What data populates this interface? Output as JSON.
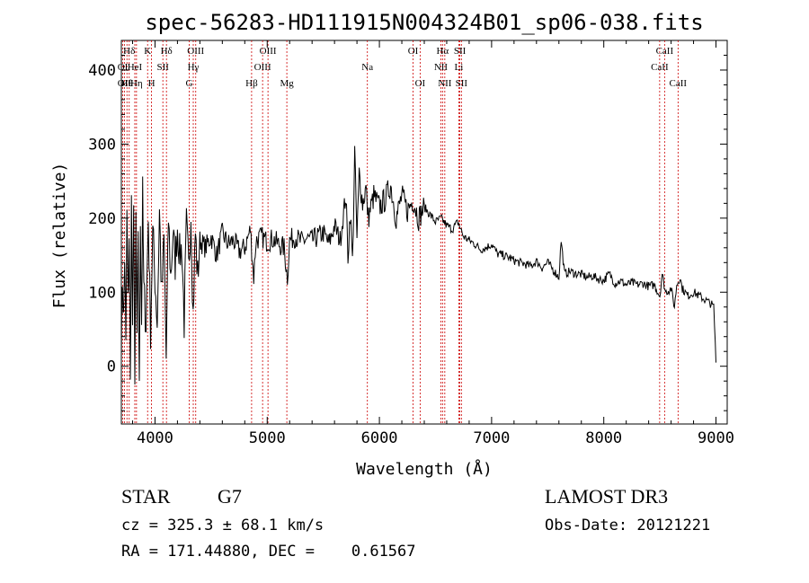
{
  "chart_data": {
    "type": "line",
    "title": "spec-56283-HD111915N004324B01_sp06-038.fits",
    "xlabel": "Wavelength (Å)",
    "ylabel": "Flux (relative)",
    "xlim": [
      3700,
      9100
    ],
    "ylim": [
      -78,
      440
    ],
    "xticks": [
      {
        "value": 4000,
        "label": "4000"
      },
      {
        "value": 5000,
        "label": "5000"
      },
      {
        "value": 6000,
        "label": "6000"
      },
      {
        "value": 7000,
        "label": "7000"
      },
      {
        "value": 8000,
        "label": "8000"
      },
      {
        "value": 9000,
        "label": "9000"
      }
    ],
    "yticks": [
      {
        "value": 0,
        "label": "0"
      },
      {
        "value": 100,
        "label": "100"
      },
      {
        "value": 200,
        "label": "200"
      },
      {
        "value": 300,
        "label": "300"
      },
      {
        "value": 400,
        "label": "400"
      }
    ],
    "line_color": "#000000",
    "marker_color": "#cc0000",
    "series": [
      {
        "name": "flux",
        "x": [
          3700,
          3710,
          3720,
          3730,
          3740,
          3750,
          3760,
          3770,
          3780,
          3790,
          3800,
          3810,
          3820,
          3830,
          3840,
          3850,
          3860,
          3870,
          3880,
          3890,
          3900,
          3920,
          3940,
          3960,
          3980,
          4000,
          4020,
          4040,
          4060,
          4080,
          4100,
          4120,
          4140,
          4160,
          4180,
          4200,
          4220,
          4240,
          4260,
          4280,
          4300,
          4320,
          4340,
          4360,
          4380,
          4400,
          4450,
          4500,
          4550,
          4600,
          4650,
          4700,
          4750,
          4800,
          4850,
          4880,
          4900,
          4950,
          5000,
          5050,
          5100,
          5150,
          5180,
          5200,
          5250,
          5300,
          5350,
          5400,
          5450,
          5500,
          5550,
          5600,
          5650,
          5700,
          5720,
          5740,
          5760,
          5780,
          5800,
          5820,
          5850,
          5880,
          5900,
          5950,
          6000,
          6050,
          6100,
          6150,
          6200,
          6250,
          6300,
          6350,
          6400,
          6450,
          6500,
          6550,
          6600,
          6650,
          6700,
          6750,
          6800,
          6850,
          6900,
          6950,
          7000,
          7050,
          7100,
          7150,
          7200,
          7250,
          7300,
          7350,
          7400,
          7450,
          7500,
          7550,
          7600,
          7620,
          7650,
          7700,
          7750,
          7800,
          7850,
          7900,
          7950,
          8000,
          8050,
          8100,
          8150,
          8200,
          8250,
          8300,
          8350,
          8400,
          8450,
          8500,
          8520,
          8550,
          8600,
          8630,
          8650,
          8680,
          8700,
          8750,
          8800,
          8850,
          8900,
          8950,
          8980,
          9000
        ],
        "y": [
          40,
          120,
          60,
          150,
          20,
          200,
          80,
          180,
          -30,
          220,
          30,
          240,
          -50,
          200,
          20,
          190,
          -40,
          210,
          60,
          230,
          100,
          60,
          200,
          50,
          180,
          120,
          60,
          210,
          90,
          170,
          10,
          200,
          120,
          180,
          140,
          190,
          150,
          160,
          60,
          190,
          130,
          210,
          70,
          180,
          120,
          170,
          160,
          175,
          150,
          180,
          165,
          170,
          155,
          160,
          185,
          120,
          170,
          175,
          168,
          172,
          165,
          160,
          120,
          170,
          175,
          168,
          172,
          170,
          175,
          180,
          165,
          190,
          170,
          230,
          150,
          210,
          140,
          290,
          170,
          260,
          220,
          240,
          200,
          230,
          215,
          225,
          245,
          200,
          230,
          210,
          225,
          200,
          215,
          205,
          195,
          200,
          190,
          185,
          195,
          175,
          170,
          165,
          158,
          160,
          165,
          152,
          150,
          147,
          143,
          140,
          138,
          135,
          142,
          133,
          140,
          130,
          120,
          170,
          125,
          128,
          125,
          124,
          120,
          122,
          118,
          116,
          125,
          112,
          115,
          110,
          113,
          110,
          112,
          108,
          110,
          95,
          125,
          100,
          105,
          80,
          110,
          120,
          105,
          95,
          100,
          95,
          90,
          85,
          80,
          5
        ]
      }
    ],
    "line_markers": [
      {
        "label": "OII",
        "wavelength": 3727,
        "row": 2
      },
      {
        "label": "Hθ",
        "wavelength": 3750,
        "row": 2
      },
      {
        "label": "Hη",
        "wavelength": 3835,
        "row": 2
      },
      {
        "label": "Hδ",
        "wavelength": 3770,
        "row": 0
      },
      {
        "label": "OI",
        "wavelength": 3712,
        "row": 1
      },
      {
        "label": "HeI",
        "wavelength": 3820,
        "row": 1
      },
      {
        "label": "K",
        "wavelength": 3934,
        "row": 0
      },
      {
        "label": "SII",
        "wavelength": 4070,
        "row": 1
      },
      {
        "label": "H",
        "wavelength": 3969,
        "row": 2
      },
      {
        "label": "Hδ",
        "wavelength": 4102,
        "row": 0
      },
      {
        "label": "OIII",
        "wavelength": 4363,
        "row": 0
      },
      {
        "label": "Hγ",
        "wavelength": 4341,
        "row": 1
      },
      {
        "label": "G",
        "wavelength": 4305,
        "row": 2
      },
      {
        "label": "Hβ",
        "wavelength": 4861,
        "row": 2
      },
      {
        "label": "OIII",
        "wavelength": 5007,
        "row": 0
      },
      {
        "label": "OIII",
        "wavelength": 4959,
        "row": 1
      },
      {
        "label": "Mg",
        "wavelength": 5175,
        "row": 2
      },
      {
        "label": "Na",
        "wavelength": 5893,
        "row": 1
      },
      {
        "label": "OI",
        "wavelength": 6300,
        "row": 0
      },
      {
        "label": "OI",
        "wavelength": 6363,
        "row": 2
      },
      {
        "label": "Hα",
        "wavelength": 6563,
        "row": 0
      },
      {
        "label": "NII",
        "wavelength": 6548,
        "row": 1
      },
      {
        "label": "NII",
        "wavelength": 6583,
        "row": 2
      },
      {
        "label": "SII",
        "wavelength": 6717,
        "row": 0
      },
      {
        "label": "Li",
        "wavelength": 6708,
        "row": 1
      },
      {
        "label": "SII",
        "wavelength": 6731,
        "row": 2
      },
      {
        "label": "CaII",
        "wavelength": 8542,
        "row": 0
      },
      {
        "label": "CaII",
        "wavelength": 8498,
        "row": 1
      },
      {
        "label": "CaII",
        "wavelength": 8662,
        "row": 2
      }
    ]
  },
  "info": {
    "object_class": "STAR",
    "subclass": "G7",
    "cz": "cz = 325.3 ± 68.1 km/s",
    "radec": "RA = 171.44880, DEC =    0.61567",
    "survey": "LAMOST DR3",
    "obs_date": "Obs-Date: 20121221"
  }
}
